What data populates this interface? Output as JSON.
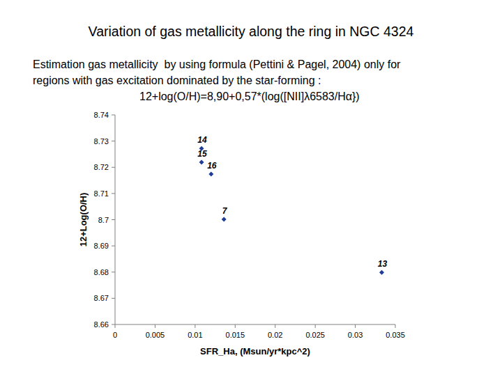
{
  "chart_data": {
    "type": "scatter",
    "title": "Variation of gas metallicity along the ring in NGC 4324",
    "subtitle": [
      "Estimation gas metallicity  by using formula (Pettini & Pagel, 2004) only for",
      "regions with gas excitation dominated by the star-forming :"
    ],
    "annotation": "12+log(O/H)=8,90+0,57*(log([NII]λ6583/Hα})",
    "x_label": "SFR_Ha, (Msun/yr*kpc^2)",
    "y_label": "12+Log(O/H)",
    "point_labels": [
      "14",
      "15",
      "16",
      "7",
      "13"
    ],
    "x": [
      0.0108,
      0.0108,
      0.012,
      0.0136,
      0.0333
    ],
    "values": [
      8.7272,
      8.7219,
      8.7174,
      8.7001,
      8.6799
    ],
    "xlim": [
      0,
      0.035
    ],
    "xticks": [
      0,
      0.005,
      0.01,
      0.015,
      0.02,
      0.025,
      0.03,
      0.035
    ],
    "ylim": [
      8.66,
      8.74
    ],
    "yticks": [
      8.66,
      8.67,
      8.68,
      8.69,
      8.7,
      8.71,
      8.72,
      8.73,
      8.74
    ],
    "color": "#1f3c99",
    "marker": "diamond",
    "grid": false
  }
}
